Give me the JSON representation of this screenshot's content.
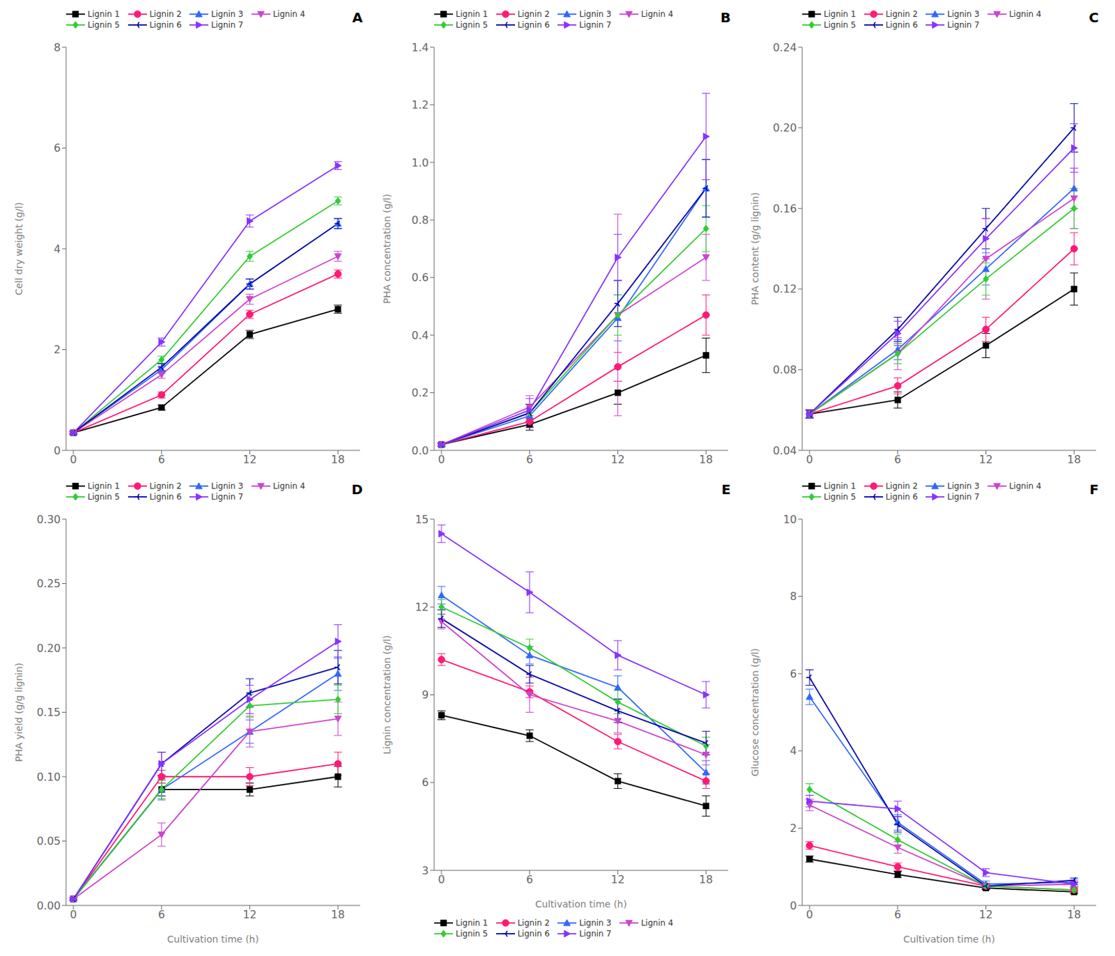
{
  "chart_data": [
    {
      "type": "line",
      "annotation": "A",
      "ylabel": "Cell dry weight (g/l)",
      "x": [
        0,
        6,
        12,
        18
      ],
      "xlim": [
        -0.5,
        19.5
      ],
      "xticks": [
        0,
        6,
        12,
        18
      ],
      "ylim": [
        0,
        8
      ],
      "yticks": [
        0,
        2,
        4,
        6,
        8
      ],
      "grid": false,
      "legend": "upper left",
      "series": [
        {
          "name": "Lignin 1",
          "color": "#000000",
          "marker": "square",
          "values": [
            0.35,
            0.85,
            2.3,
            2.8
          ],
          "error": [
            0.03,
            0.05,
            0.08,
            0.08
          ]
        },
        {
          "name": "Lignin 2",
          "color": "#ff1a75",
          "marker": "circle",
          "values": [
            0.35,
            1.1,
            2.7,
            3.5
          ],
          "error": [
            0.03,
            0.06,
            0.08,
            0.08
          ]
        },
        {
          "name": "Lignin 3",
          "color": "#3366ff",
          "marker": "triangle-up",
          "values": [
            0.35,
            1.6,
            3.3,
            4.5
          ],
          "error": [
            0.03,
            0.07,
            0.1,
            0.1
          ]
        },
        {
          "name": "Lignin 4",
          "color": "#cc44cc",
          "marker": "triangle-down",
          "values": [
            0.35,
            1.5,
            3.0,
            3.85
          ],
          "error": [
            0.03,
            0.07,
            0.1,
            0.1
          ]
        },
        {
          "name": "Lignin 5",
          "color": "#33cc33",
          "marker": "diamond",
          "values": [
            0.35,
            1.8,
            3.85,
            4.95
          ],
          "error": [
            0.03,
            0.07,
            0.1,
            0.08
          ]
        },
        {
          "name": "Lignin 6",
          "color": "#0000aa",
          "marker": "tri-left",
          "values": [
            0.35,
            1.65,
            3.3,
            4.5
          ],
          "error": [
            0.03,
            0.07,
            0.1,
            0.1
          ]
        },
        {
          "name": "Lignin 7",
          "color": "#8833ff",
          "marker": "triangle-right",
          "values": [
            0.35,
            2.15,
            4.55,
            5.65
          ],
          "error": [
            0.03,
            0.08,
            0.12,
            0.08
          ]
        }
      ]
    },
    {
      "type": "line",
      "annotation": "B",
      "ylabel": "PHA concentration (g/l)",
      "x": [
        0,
        6,
        12,
        18
      ],
      "xlim": [
        -0.5,
        19.5
      ],
      "xticks": [
        0,
        6,
        12,
        18
      ],
      "ylim": [
        0,
        1.4
      ],
      "yticks": [
        {
          "value": 0,
          "label": "0.0"
        },
        0.2,
        0.4,
        0.6,
        0.8,
        {
          "value": 1,
          "label": "1.0"
        },
        1.2,
        1.4
      ],
      "grid": false,
      "legend": "upper left",
      "series": [
        {
          "name": "Lignin 1",
          "color": "#000000",
          "marker": "square",
          "values": [
            0.02,
            0.09,
            0.2,
            0.33
          ],
          "error": [
            0.005,
            0.02,
            0.04,
            0.06
          ]
        },
        {
          "name": "Lignin 2",
          "color": "#ff1a75",
          "marker": "circle",
          "values": [
            0.02,
            0.1,
            0.29,
            0.47
          ],
          "error": [
            0.005,
            0.02,
            0.05,
            0.07
          ]
        },
        {
          "name": "Lignin 3",
          "color": "#3366ff",
          "marker": "triangle-up",
          "values": [
            0.02,
            0.12,
            0.46,
            0.91
          ],
          "error": [
            0.005,
            0.04,
            0.08,
            0.1
          ]
        },
        {
          "name": "Lignin 4",
          "color": "#cc44cc",
          "marker": "triangle-down",
          "values": [
            0.02,
            0.15,
            0.47,
            0.67
          ],
          "error": [
            0.005,
            0.04,
            0.35,
            0.08
          ]
        },
        {
          "name": "Lignin 5",
          "color": "#33cc33",
          "marker": "diamond",
          "values": [
            0.02,
            0.13,
            0.47,
            0.77
          ],
          "error": [
            0.005,
            0.03,
            0.07,
            0.08
          ]
        },
        {
          "name": "Lignin 6",
          "color": "#0000aa",
          "marker": "tri-left",
          "values": [
            0.02,
            0.13,
            0.51,
            0.91
          ],
          "error": [
            0.005,
            0.03,
            0.08,
            0.1
          ]
        },
        {
          "name": "Lignin 7",
          "color": "#8833ff",
          "marker": "triangle-right",
          "values": [
            0.02,
            0.14,
            0.67,
            1.09
          ],
          "error": [
            0.005,
            0.04,
            0.08,
            0.15
          ]
        }
      ]
    },
    {
      "type": "line",
      "annotation": "C",
      "ylabel": "PHA content (g/g lignin)",
      "x": [
        0,
        6,
        12,
        18
      ],
      "xlim": [
        -0.5,
        19.5
      ],
      "xticks": [
        0,
        6,
        12,
        18
      ],
      "ylim": [
        0.04,
        0.24
      ],
      "yticks": [
        0.04,
        0.08,
        0.12,
        0.16,
        {
          "value": 0.2,
          "label": "0.20"
        },
        0.24
      ],
      "grid": false,
      "legend": "upper left",
      "series": [
        {
          "name": "Lignin 1",
          "color": "#000000",
          "marker": "square",
          "values": [
            0.058,
            0.065,
            0.092,
            0.12
          ],
          "error": [
            0.002,
            0.004,
            0.006,
            0.008
          ]
        },
        {
          "name": "Lignin 2",
          "color": "#ff1a75",
          "marker": "circle",
          "values": [
            0.058,
            0.072,
            0.1,
            0.14
          ],
          "error": [
            0.002,
            0.004,
            0.006,
            0.008
          ]
        },
        {
          "name": "Lignin 3",
          "color": "#3366ff",
          "marker": "triangle-up",
          "values": [
            0.058,
            0.09,
            0.13,
            0.17
          ],
          "error": [
            0.002,
            0.005,
            0.008,
            0.01
          ]
        },
        {
          "name": "Lignin 4",
          "color": "#cc44cc",
          "marker": "triangle-down",
          "values": [
            0.058,
            0.088,
            0.135,
            0.165
          ],
          "error": [
            0.002,
            0.008,
            0.02,
            0.015
          ]
        },
        {
          "name": "Lignin 5",
          "color": "#33cc33",
          "marker": "diamond",
          "values": [
            0.058,
            0.088,
            0.125,
            0.16
          ],
          "error": [
            0.002,
            0.005,
            0.008,
            0.01
          ]
        },
        {
          "name": "Lignin 6",
          "color": "#0000aa",
          "marker": "tri-left",
          "values": [
            0.058,
            0.1,
            0.15,
            0.2
          ],
          "error": [
            0.002,
            0.006,
            0.01,
            0.012
          ]
        },
        {
          "name": "Lignin 7",
          "color": "#8833ff",
          "marker": "triangle-right",
          "values": [
            0.058,
            0.098,
            0.145,
            0.19
          ],
          "error": [
            0.002,
            0.006,
            0.01,
            0.012
          ]
        }
      ]
    },
    {
      "type": "line",
      "annotation": "D",
      "ylabel": "PHA yield (g/g lignin)",
      "xlabel": "Cultivation time (h)",
      "x": [
        0,
        6,
        12,
        18
      ],
      "xlim": [
        -0.5,
        19.5
      ],
      "xticks": [
        0,
        6,
        12,
        18
      ],
      "ylim": [
        0,
        0.3
      ],
      "yticks": [
        {
          "value": 0,
          "label": "0.00"
        },
        0.05,
        {
          "value": 0.1,
          "label": "0.10"
        },
        0.15,
        {
          "value": 0.2,
          "label": "0.20"
        },
        0.25,
        {
          "value": 0.3,
          "label": "0.30"
        }
      ],
      "grid": false,
      "legend": "upper left",
      "series": [
        {
          "name": "Lignin 1",
          "color": "#000000",
          "marker": "square",
          "values": [
            0.005,
            0.09,
            0.09,
            0.1
          ],
          "error": [
            0.001,
            0.005,
            0.005,
            0.008
          ]
        },
        {
          "name": "Lignin 2",
          "color": "#ff1a75",
          "marker": "circle",
          "values": [
            0.005,
            0.1,
            0.1,
            0.11
          ],
          "error": [
            0.001,
            0.005,
            0.007,
            0.009
          ]
        },
        {
          "name": "Lignin 3",
          "color": "#3366ff",
          "marker": "triangle-up",
          "values": [
            0.005,
            0.09,
            0.135,
            0.18
          ],
          "error": [
            0.001,
            0.008,
            0.009,
            0.013
          ]
        },
        {
          "name": "Lignin 4",
          "color": "#cc44cc",
          "marker": "triangle-down",
          "values": [
            0.005,
            0.055,
            0.135,
            0.145
          ],
          "error": [
            0.001,
            0.009,
            0.012,
            0.013
          ]
        },
        {
          "name": "Lignin 5",
          "color": "#33cc33",
          "marker": "diamond",
          "values": [
            0.005,
            0.09,
            0.155,
            0.16
          ],
          "error": [
            0.001,
            0.007,
            0.009,
            0.011
          ]
        },
        {
          "name": "Lignin 6",
          "color": "#0000aa",
          "marker": "tri-left",
          "values": [
            0.005,
            0.11,
            0.165,
            0.185
          ],
          "error": [
            0.001,
            0.009,
            0.011,
            0.013
          ]
        },
        {
          "name": "Lignin 7",
          "color": "#8833ff",
          "marker": "triangle-right",
          "values": [
            0.005,
            0.11,
            0.16,
            0.205
          ],
          "error": [
            0.001,
            0.009,
            0.011,
            0.013
          ]
        }
      ]
    },
    {
      "type": "line",
      "annotation": "E",
      "ylabel": "Lignin concentration (g/l)",
      "xlabel": "Cultivation time (h)",
      "x": [
        0,
        6,
        12,
        18
      ],
      "xlim": [
        -0.5,
        19.5
      ],
      "xticks": [
        0,
        6,
        12,
        18
      ],
      "ylim": [
        3,
        15
      ],
      "yticks": [
        3,
        6,
        9,
        12,
        15
      ],
      "grid": false,
      "legend": "lower left",
      "series": [
        {
          "name": "Lignin 1",
          "color": "#000000",
          "marker": "square",
          "values": [
            8.3,
            7.6,
            6.05,
            5.2
          ],
          "error": [
            0.15,
            0.2,
            0.25,
            0.35
          ]
        },
        {
          "name": "Lignin 2",
          "color": "#ff1a75",
          "marker": "circle",
          "values": [
            10.2,
            9.1,
            7.4,
            6.05
          ],
          "error": [
            0.2,
            0.2,
            0.25,
            0.25
          ]
        },
        {
          "name": "Lignin 3",
          "color": "#3366ff",
          "marker": "triangle-up",
          "values": [
            12.4,
            10.35,
            9.25,
            6.35
          ],
          "error": [
            0.3,
            0.3,
            0.4,
            0.4
          ]
        },
        {
          "name": "Lignin 4",
          "color": "#cc44cc",
          "marker": "triangle-down",
          "values": [
            11.5,
            9.0,
            8.1,
            6.95
          ],
          "error": [
            0.25,
            0.6,
            0.4,
            0.35
          ]
        },
        {
          "name": "Lignin 5",
          "color": "#33cc33",
          "marker": "diamond",
          "values": [
            12.0,
            10.6,
            8.75,
            7.25
          ],
          "error": [
            0.25,
            0.3,
            0.4,
            0.3
          ]
        },
        {
          "name": "Lignin 6",
          "color": "#0000aa",
          "marker": "tri-left",
          "values": [
            11.6,
            9.7,
            8.45,
            7.35
          ],
          "error": [
            0.3,
            0.3,
            0.4,
            0.4
          ]
        },
        {
          "name": "Lignin 7",
          "color": "#8833ff",
          "marker": "triangle-right",
          "values": [
            14.5,
            12.5,
            10.35,
            9.0
          ],
          "error": [
            0.3,
            0.7,
            0.5,
            0.45
          ]
        }
      ]
    },
    {
      "type": "line",
      "annotation": "F",
      "ylabel": "Glucose concentration (g/l)",
      "xlabel": "Cultivation time (h)",
      "x": [
        0,
        6,
        12,
        18
      ],
      "xlim": [
        -0.5,
        19.5
      ],
      "xticks": [
        0,
        6,
        12,
        18
      ],
      "ylim": [
        0,
        10
      ],
      "yticks": [
        0,
        2,
        4,
        6,
        8,
        10
      ],
      "grid": false,
      "legend": "upper left",
      "series": [
        {
          "name": "Lignin 1",
          "color": "#000000",
          "marker": "square",
          "values": [
            1.2,
            0.8,
            0.45,
            0.35
          ],
          "error": [
            0.08,
            0.08,
            0.04,
            0.04
          ]
        },
        {
          "name": "Lignin 2",
          "color": "#ff1a75",
          "marker": "circle",
          "values": [
            1.55,
            1.0,
            0.5,
            0.4
          ],
          "error": [
            0.1,
            0.1,
            0.04,
            0.04
          ]
        },
        {
          "name": "Lignin 3",
          "color": "#3366ff",
          "marker": "triangle-up",
          "values": [
            5.4,
            2.15,
            0.55,
            0.6
          ],
          "error": [
            0.2,
            0.2,
            0.08,
            0.06
          ]
        },
        {
          "name": "Lignin 4",
          "color": "#cc44cc",
          "marker": "triangle-down",
          "values": [
            2.6,
            1.5,
            0.5,
            0.55
          ],
          "error": [
            0.15,
            0.15,
            0.07,
            0.06
          ]
        },
        {
          "name": "Lignin 5",
          "color": "#33cc33",
          "marker": "diamond",
          "values": [
            3.0,
            1.7,
            0.5,
            0.4
          ],
          "error": [
            0.15,
            0.15,
            0.07,
            0.06
          ]
        },
        {
          "name": "Lignin 6",
          "color": "#0000aa",
          "marker": "tri-left",
          "values": [
            5.9,
            2.1,
            0.5,
            0.65
          ],
          "error": [
            0.2,
            0.2,
            0.07,
            0.06
          ]
        },
        {
          "name": "Lignin 7",
          "color": "#8833ff",
          "marker": "triangle-right",
          "values": [
            2.7,
            2.5,
            0.85,
            0.55
          ],
          "error": [
            0.15,
            0.2,
            0.1,
            0.06
          ]
        }
      ]
    }
  ]
}
